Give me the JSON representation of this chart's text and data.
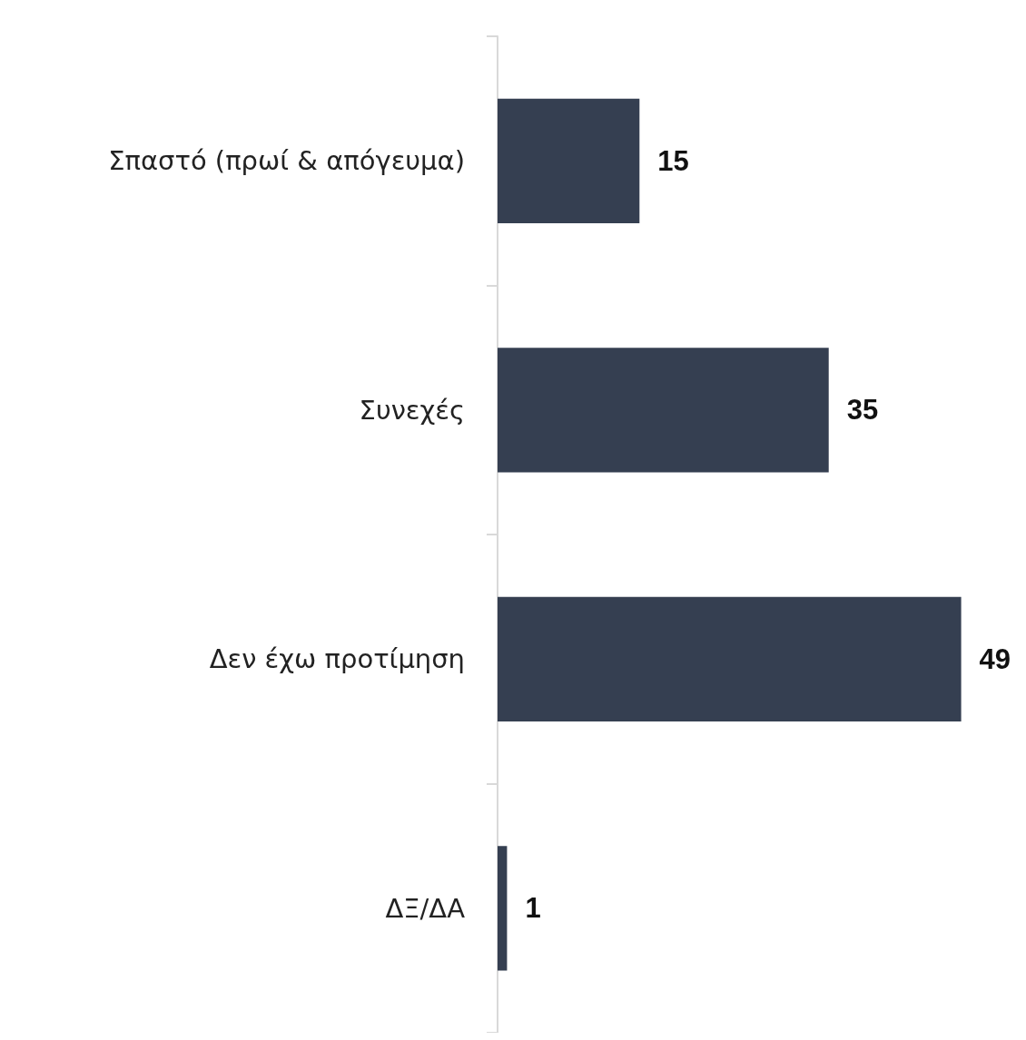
{
  "chart_data": {
    "type": "bar",
    "orientation": "horizontal",
    "categories": [
      "Σπαστό (πρωί & απόγευμα)",
      "Συνεχές",
      "Δεν έχω προτίμηση",
      "ΔΞ/ΔΑ"
    ],
    "values": [
      15,
      35,
      49,
      1
    ],
    "color": "#353f51",
    "data_labels": true,
    "tick_labels": "y"
  }
}
